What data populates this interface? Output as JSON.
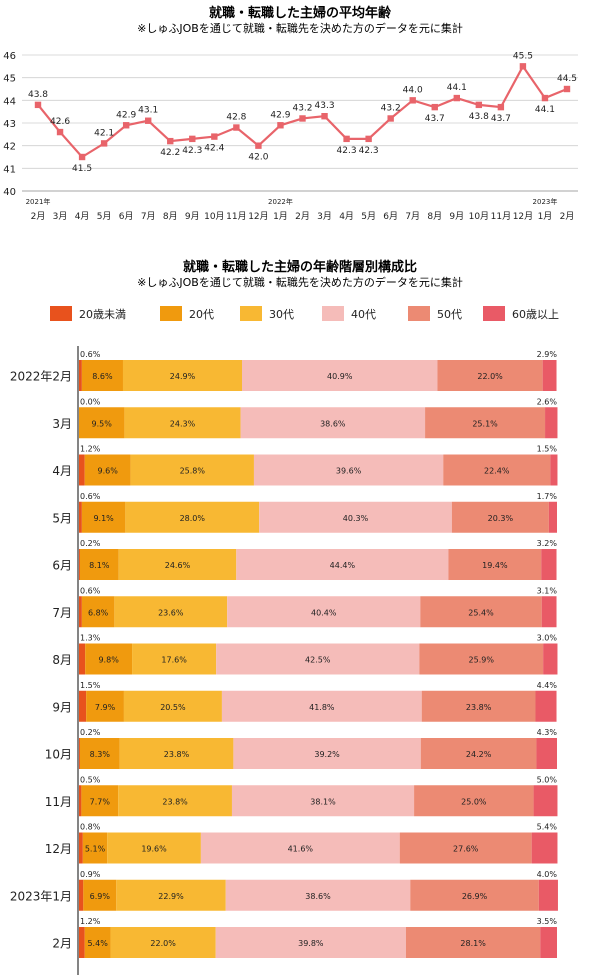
{
  "line_chart_title": "就職・転職した主婦の平均年齢",
  "line_chart_subtitle": "※しゅふJOBを通じて就職・転職先を決めた方のデータを元に集計",
  "stack_chart_title": "就職・転職した主婦の年齢階層別構成比",
  "stack_chart_subtitle": "※しゅふJOBを通じて就職・転職先を決めた方のデータを元に集計",
  "chart_data": [
    {
      "type": "line",
      "title": "就職・転職した主婦の平均年齢",
      "subtitle": "※しゅふJOBを通じて就職・転職先を決めた方のデータを元に集計",
      "x": [
        "2月",
        "3月",
        "4月",
        "5月",
        "6月",
        "7月",
        "8月",
        "9月",
        "10月",
        "11月",
        "12月",
        "1月",
        "2月",
        "3月",
        "4月",
        "5月",
        "6月",
        "7月",
        "8月",
        "9月",
        "10月",
        "11月",
        "12月",
        "1月",
        "2月"
      ],
      "year_labels": [
        {
          "index": 0,
          "label": "2021年"
        },
        {
          "index": 11,
          "label": "2022年"
        },
        {
          "index": 23,
          "label": "2023年"
        }
      ],
      "series": [
        {
          "values": [
            43.8,
            42.6,
            41.5,
            42.1,
            42.9,
            43.1,
            42.2,
            42.3,
            42.4,
            42.8,
            42.0,
            42.9,
            43.2,
            43.3,
            42.3,
            42.3,
            43.2,
            44.0,
            43.7,
            44.1,
            43.8,
            43.7,
            45.5,
            44.1,
            44.5
          ]
        }
      ],
      "ylim": [
        40,
        46
      ],
      "yticks": [
        40,
        41,
        42,
        43,
        44,
        45,
        46
      ],
      "grid": true,
      "color": "#e8646a"
    },
    {
      "type": "bar",
      "orientation": "horizontal",
      "stacked": true,
      "title": "就職・転職した主婦の年齢階層別構成比",
      "subtitle": "※しゅふJOBを通じて就職・転職先を決めた方のデータを元に集計",
      "legend_position": "top",
      "categories": [
        "2022年2月",
        "3月",
        "4月",
        "5月",
        "6月",
        "7月",
        "8月",
        "9月",
        "10月",
        "11月",
        "12月",
        "2023年1月",
        "2月"
      ],
      "series": [
        {
          "name": "20歳未満",
          "color": "#e8521d",
          "values": [
            0.6,
            0.0,
            1.2,
            0.6,
            0.2,
            0.6,
            1.3,
            1.5,
            0.2,
            0.5,
            0.8,
            0.9,
            1.2
          ]
        },
        {
          "name": "20代",
          "color": "#f09a0e",
          "values": [
            8.6,
            9.5,
            9.6,
            9.1,
            8.1,
            6.8,
            9.8,
            7.9,
            8.3,
            7.7,
            5.1,
            6.9,
            5.4
          ]
        },
        {
          "name": "30代",
          "color": "#f8b833",
          "values": [
            24.9,
            24.3,
            25.8,
            28.0,
            24.6,
            23.6,
            17.6,
            20.5,
            23.8,
            23.8,
            19.6,
            22.9,
            22.0
          ]
        },
        {
          "name": "40代",
          "color": "#f5bcb9",
          "values": [
            40.9,
            38.6,
            39.6,
            40.3,
            44.4,
            40.4,
            42.5,
            41.8,
            39.2,
            38.1,
            41.6,
            38.6,
            39.8
          ]
        },
        {
          "name": "50代",
          "color": "#ec8a73",
          "values": [
            22.0,
            25.1,
            22.4,
            20.3,
            19.4,
            25.4,
            25.9,
            23.8,
            24.2,
            25.0,
            27.6,
            26.9,
            28.1
          ]
        },
        {
          "name": "60歳以上",
          "color": "#e95a66",
          "values": [
            2.9,
            2.6,
            1.5,
            1.7,
            3.2,
            3.1,
            3.0,
            4.4,
            4.3,
            5.0,
            5.4,
            4.0,
            3.5
          ]
        }
      ]
    }
  ]
}
